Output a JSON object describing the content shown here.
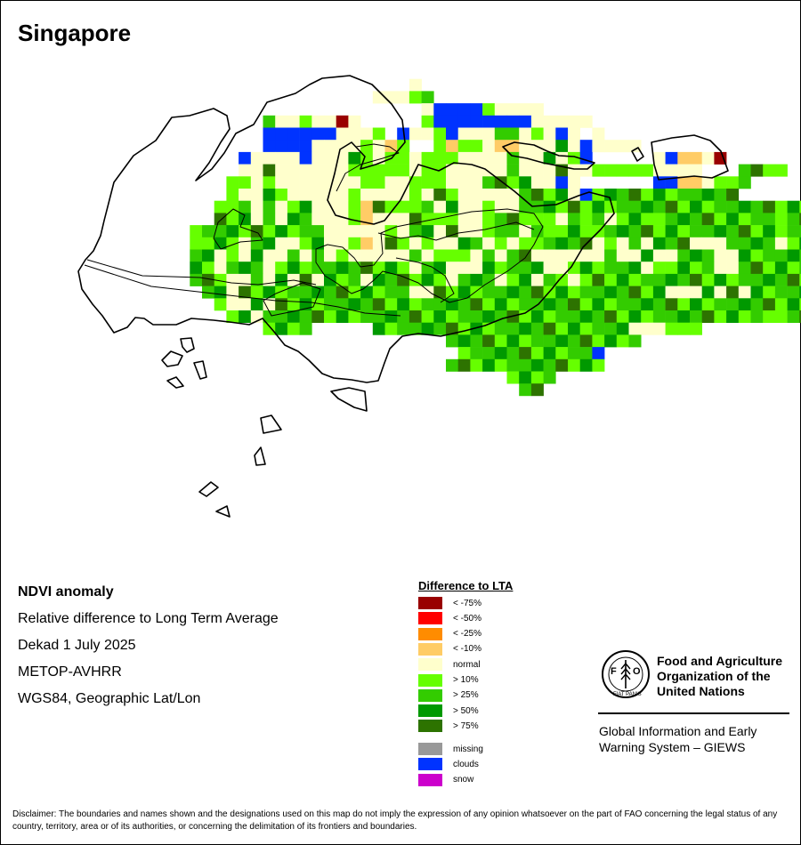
{
  "map": {
    "title": "Singapore",
    "cell_size_deg": 0.009,
    "extent": {
      "lon": [
        103.604,
        104.095
      ],
      "lat": [
        1.156,
        1.478
      ]
    },
    "classes": {
      "c75n": "#990000",
      "c50n": "#ff0000",
      "c25n": "#ff8c00",
      "c10n": "#ffcc66",
      "norm": "#ffffcc",
      "p10": "#66ff00",
      "p25": "#33cc00",
      "p50": "#009900",
      "p75": "#2d7300",
      "miss": "#999999",
      "cloud": "#0033ff",
      "snow": "#cc00cc"
    },
    "grid": [
      "..................................................",
      "...........................n......................",
      "........................nnnpg.....................",
      "............................nccccpnnnn............",
      "...............gnnpnnrn.....pccccccccnnnnn........",
      "...............ccccccnnnp.cnnpcnnnggnpncn.n........",
      "...............ccccnnnnpnqp..pqppnqqnnngncnnnn.....",
      ".............cnnnncnnngpnppnpppnnnngnngnpc.....ncqqnd",
      ".............nngnnnnnnppgppnppnnnnngnnngnnpppppnnnn...ggpp",
      "............ppnpnnnnnnnppnnpppnnnggggnncn......ccqqnpgg",
      "............pnnggnnnnnpnnnnpnggnnnnnggggncpggggggggggg......gggcnn",
      "...........ppgngnggnnnpqggppgngnngnngggpgggggggggggggggggggggpgmp",
      "...........gggngnggnnnpqnnnggpgnnpgggpgngpgngggpgggggggggpgggmg",
      ".........ggggpggggggnnnnngnggngnngggngpgggpggggggggggggggggggpcc",
      ".........pgggnggnnggnnpqnggngnnggngngpggggnpngngggnnnggggnpggccg",
      ".........ggnpngnngngngnnnnngngpgngnggnnnnnngnngnngggnngggggggggq",
      ".........ggngggngggggggggggnggnnngggggnnggggggnpggggnnggggggggggg",
      ".........gggnngngngngggnggggggngggnggngpnpggggggggggggggggggggggg",
      "..........ggnggggggggggggggnngggggggggggggggggggnnngngngggggggggc",
      "...........gnngnggggggggggggggggggggggggggggggggggggggggggggpg",
      "............ggngggggggggggggggggggggggggggggggggggggggggppgggg",
      "...............gggg.....gggggggggggggggggggggnnnppp....",
      "..............................gggggggggggggggg......",
      "...............................gggggggggggc..........",
      "..............................ggggggggggggg..........",
      "...................................gggg..............",
      "....................................gg..............."
    ],
    "outline": "Singapore main island coastline",
    "islands": [
      "Pulau Ubin",
      "Pulau Tekong",
      "Sentosa",
      "Southern Islands"
    ]
  },
  "info": {
    "title": "NDVI anomaly",
    "line1": "Relative difference to Long Term Average",
    "line2": "Dekad 1 July 2025",
    "line3": "METOP-AVHRR",
    "line4": "WGS84, Geographic Lat/Lon"
  },
  "legend": {
    "title": "Difference to LTA",
    "items": [
      {
        "label": "< -75%",
        "color": "#990000"
      },
      {
        "label": "< -50%",
        "color": "#ff0000"
      },
      {
        "label": "< -25%",
        "color": "#ff8c00"
      },
      {
        "label": "< -10%",
        "color": "#ffcc66"
      },
      {
        "label": "normal",
        "color": "#ffffcc"
      },
      {
        "label": "> 10%",
        "color": "#66ff00"
      },
      {
        "label": "> 25%",
        "color": "#33cc00"
      },
      {
        "label": "> 50%",
        "color": "#009900"
      },
      {
        "label": "> 75%",
        "color": "#2d7300"
      }
    ],
    "extra": [
      {
        "label": "missing",
        "color": "#999999"
      },
      {
        "label": "clouds",
        "color": "#0033ff"
      },
      {
        "label": "snow",
        "color": "#cc00cc"
      }
    ]
  },
  "logo": {
    "org_name": "Food and Agriculture Organization of the United Nations",
    "program": "Global Information and Early Warning System – GIEWS",
    "emblem_text": "FAO",
    "motto": "FIAT PANIS"
  },
  "disclaimer": "Disclaimer: The boundaries and names shown and the designations used on this map do not imply the expression of any opinion whatsoever on the part of FAO concerning the legal status of any country, territory, area or of its authorities, or concerning the delimitation of its frontiers and boundaries."
}
